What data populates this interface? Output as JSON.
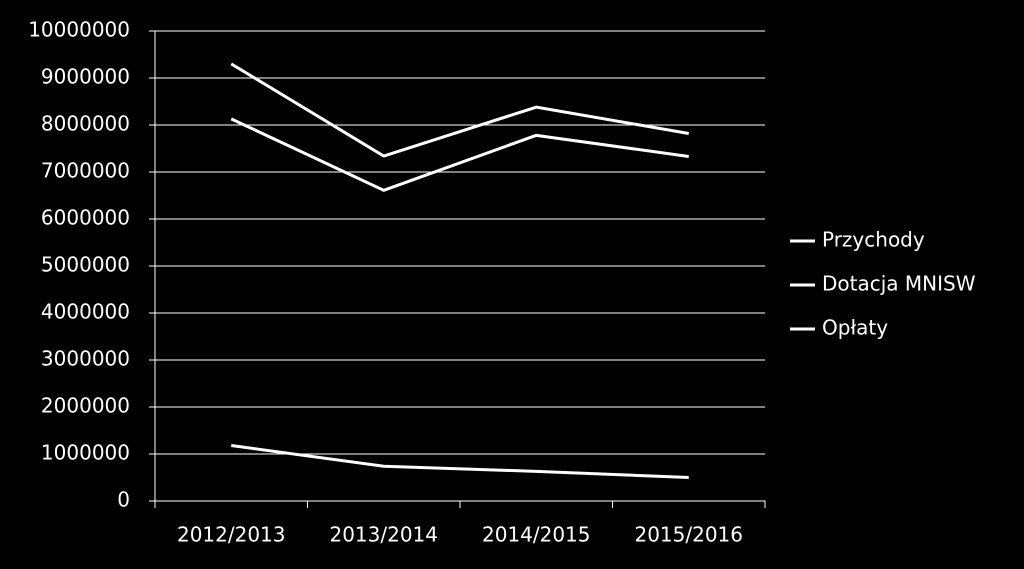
{
  "chart_data": {
    "type": "line",
    "categories": [
      "2012/2013",
      "2013/2014",
      "2014/2015",
      "2015/2016"
    ],
    "series": [
      {
        "name": "Przychody",
        "color": "#ffffff",
        "values": [
          9300000,
          7340000,
          8380000,
          7820000
        ]
      },
      {
        "name": "Dotacja MNISW",
        "color": "#ffffff",
        "values": [
          8130000,
          6610000,
          7780000,
          7330000
        ]
      },
      {
        "name": "Opłaty",
        "color": "#ffffff",
        "values": [
          1180000,
          740000,
          630000,
          500000
        ]
      }
    ],
    "ylim": [
      0,
      10000000
    ],
    "yticks": [
      0,
      1000000,
      2000000,
      3000000,
      4000000,
      5000000,
      6000000,
      7000000,
      8000000,
      9000000,
      10000000
    ],
    "grid": true,
    "legend": "right"
  }
}
